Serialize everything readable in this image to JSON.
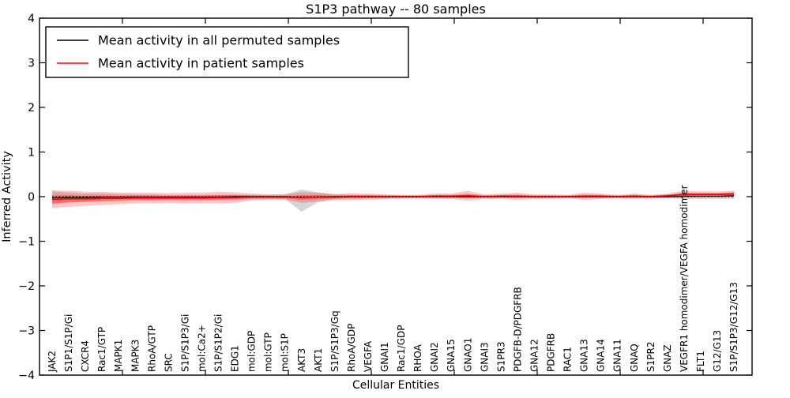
{
  "title": "S1P3 pathway -- 80 samples",
  "legend": [
    {
      "label": "Mean activity in all permuted samples",
      "color": "#000000"
    },
    {
      "label": "Mean activity in patient samples",
      "color": "#ff0000"
    }
  ],
  "chart_data": {
    "type": "line",
    "title": "S1P3 pathway -- 80 samples",
    "xlabel": "Cellular Entities",
    "ylabel": "Inferred Activity",
    "ylim": [
      -4,
      4
    ],
    "yticks": [
      -4,
      -3,
      -2,
      -1,
      0,
      1,
      2,
      3,
      4
    ],
    "grid": false,
    "legend_position": "upper left",
    "zero_line": {
      "style": "dotted",
      "color": "#000000",
      "y": 0
    },
    "categories": [
      "JAK2",
      "S1P1/S1P/Gi",
      "CXCR4",
      "Rac1/GTP",
      "MAPK1",
      "MAPK3",
      "RhoA/GTP",
      "SRC",
      "S1P/S1P3/Gi",
      "mol:Ca2+",
      "S1P/S1P2/Gi",
      "EDG1",
      "mol:GDP",
      "mol:GTP",
      "mol:S1P",
      "AKT3",
      "AKT1",
      "S1P/S1P3/Gq",
      "RhoA/GDP",
      "VEGFA",
      "GNAI1",
      "Rac1/GDP",
      "RHOA",
      "GNAI2",
      "GNA15",
      "GNAO1",
      "GNAI3",
      "S1PR3",
      "PDGFB-D/PDGFRB",
      "GNA12",
      "PDGFRB",
      "RAC1",
      "GNA13",
      "GNA14",
      "GNA11",
      "GNAQ",
      "S1PR2",
      "GNAZ",
      "VEGFR1 homodimer/VEGFA homodimer",
      "FLT1",
      "G12/G13",
      "S1P/S1P3/G12/G13"
    ],
    "series": [
      {
        "name": "Mean activity in all permuted samples",
        "color": "#000000",
        "values": [
          -0.03,
          -0.02,
          -0.02,
          -0.01,
          -0.01,
          -0.01,
          -0.01,
          -0.01,
          -0.01,
          -0.01,
          -0.01,
          0,
          0,
          0,
          0,
          -0.02,
          -0.01,
          0,
          0,
          0,
          0,
          0,
          0,
          0,
          0,
          0,
          0,
          0,
          0,
          0,
          0,
          0,
          0,
          0,
          0,
          0,
          0,
          0,
          0.01,
          0.01,
          0.01,
          0.02
        ],
        "band": {
          "color": "#888888",
          "upper": [
            0.12,
            0.09,
            0.07,
            0.07,
            0.06,
            0.05,
            0.05,
            0.04,
            0.04,
            0.04,
            0.04,
            0.05,
            0.04,
            0.04,
            0.05,
            0.16,
            0.09,
            0.05,
            0.04,
            0.04,
            0.04,
            0.03,
            0.03,
            0.03,
            0.03,
            0.04,
            0.03,
            0.03,
            0.03,
            0.03,
            0.03,
            0.03,
            0.03,
            0.03,
            0.03,
            0.03,
            0.03,
            0.04,
            0.07,
            0.07,
            0.07,
            0.09
          ],
          "lower": [
            -0.18,
            -0.13,
            -0.11,
            -0.09,
            -0.08,
            -0.07,
            -0.07,
            -0.06,
            -0.06,
            -0.06,
            -0.06,
            -0.05,
            -0.04,
            -0.04,
            -0.05,
            -0.34,
            -0.12,
            -0.05,
            -0.04,
            -0.04,
            -0.04,
            -0.03,
            -0.03,
            -0.03,
            -0.03,
            -0.04,
            -0.03,
            -0.03,
            -0.03,
            -0.03,
            -0.03,
            -0.03,
            -0.03,
            -0.03,
            -0.03,
            -0.03,
            -0.03,
            -0.04,
            -0.05,
            -0.05,
            -0.05,
            -0.05
          ]
        }
      },
      {
        "name": "Mean activity in patient samples",
        "color": "#ff0000",
        "values": [
          -0.06,
          -0.05,
          -0.05,
          -0.04,
          -0.04,
          -0.03,
          -0.03,
          -0.03,
          -0.03,
          -0.03,
          -0.02,
          -0.02,
          -0.01,
          -0.01,
          -0.01,
          -0.02,
          -0.01,
          -0.01,
          0,
          0,
          0,
          0,
          0,
          0.01,
          0.01,
          0.02,
          0,
          0.01,
          0.01,
          0,
          0,
          0,
          0.01,
          0.01,
          0,
          0.01,
          0,
          0.02,
          0.05,
          0.05,
          0.05,
          0.06
        ],
        "band": {
          "color": "#ff0000",
          "upper": [
            0.14,
            0.13,
            0.11,
            0.11,
            0.09,
            0.09,
            0.09,
            0.08,
            0.09,
            0.09,
            0.11,
            0.1,
            0.07,
            0.05,
            0.05,
            0.1,
            0.09,
            0.06,
            0.08,
            0.07,
            0.05,
            0.04,
            0.04,
            0.07,
            0.07,
            0.13,
            0.05,
            0.07,
            0.09,
            0.05,
            0.05,
            0.04,
            0.09,
            0.07,
            0.04,
            0.07,
            0.04,
            0.07,
            0.13,
            0.12,
            0.11,
            0.13
          ],
          "lower": [
            -0.26,
            -0.23,
            -0.21,
            -0.19,
            -0.17,
            -0.15,
            -0.15,
            -0.14,
            -0.15,
            -0.15,
            -0.15,
            -0.14,
            -0.09,
            -0.07,
            -0.07,
            -0.14,
            -0.11,
            -0.08,
            -0.08,
            -0.07,
            -0.05,
            -0.04,
            -0.04,
            -0.05,
            -0.05,
            -0.09,
            -0.05,
            -0.05,
            -0.07,
            -0.05,
            -0.05,
            -0.04,
            -0.07,
            -0.05,
            -0.04,
            -0.05,
            -0.04,
            -0.03,
            -0.03,
            -0.02,
            -0.01,
            -0.01
          ]
        }
      }
    ]
  }
}
